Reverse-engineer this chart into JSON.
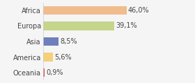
{
  "categories": [
    "Africa",
    "Europa",
    "Asia",
    "America",
    "Oceania"
  ],
  "values": [
    46.0,
    39.1,
    8.5,
    5.6,
    0.9
  ],
  "labels": [
    "46,0%",
    "39,1%",
    "8,5%",
    "5,6%",
    "0,9%"
  ],
  "colors": [
    "#f0bc8c",
    "#c5d58c",
    "#6e7fbc",
    "#f5d07a",
    "#e05050"
  ],
  "background_color": "#f5f5f5",
  "xlim": [
    0,
    60
  ],
  "label_fontsize": 7.0,
  "ytick_fontsize": 7.0,
  "bar_height": 0.55
}
